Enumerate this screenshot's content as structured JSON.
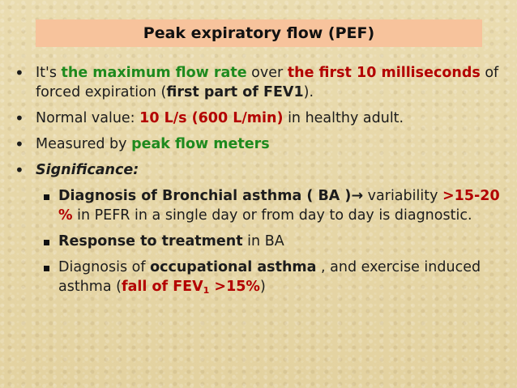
{
  "title": "Peak expiratory flow (PEF)",
  "bullets": {
    "b1": {
      "t1": "It's ",
      "t2": "the maximum flow rate",
      "t3": " over ",
      "t4": "the first 10 milliseconds",
      "t5": " of forced expiration (",
      "t6": "first part of FEV1",
      "t7": ")."
    },
    "b2": {
      "t1": "Normal value: ",
      "t2": "10 L/s (600 L/min)",
      "t3": " in healthy adult."
    },
    "b3": {
      "t1": "Measured by ",
      "t2": "peak flow meters"
    },
    "b4": {
      "t1": "Significance:"
    }
  },
  "subs": {
    "s1": {
      "t1": "Diagnosis of Bronchial asthma ( BA )",
      "arrow": "→",
      "t2": " variability ",
      "t3": ">15-20 %",
      "t4": " in PEFR in a single day or from day to day is diagnostic."
    },
    "s2": {
      "t1": "Response to treatment",
      "t2": " in BA"
    },
    "s3": {
      "t1": "Diagnosis of ",
      "t2": "occupational asthma",
      "t3": " , and exercise induced asthma (",
      "t4": "fall of FEV",
      "t4sub": "1",
      "t5": " >15%",
      "t6": ")"
    }
  },
  "bullet_char": "•"
}
